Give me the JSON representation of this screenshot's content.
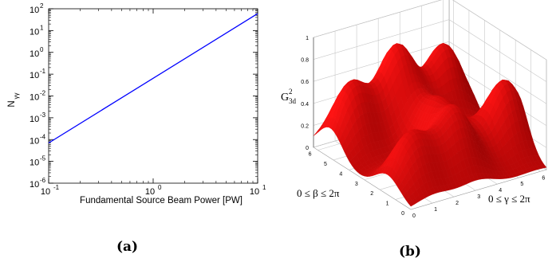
{
  "chart_data": [
    {
      "panel": "(a)",
      "type": "line",
      "xlabel": "Fundamental Source Beam Power [PW]",
      "ylabel": "N",
      "ylabel_subscript": "γγ",
      "xscale": "log",
      "yscale": "log",
      "xlim": [
        0.1,
        10
      ],
      "ylim": [
        1e-06,
        100
      ],
      "grid": false,
      "x_ticks": [
        {
          "base": "10",
          "exp": "-1"
        },
        {
          "base": "10",
          "exp": "0"
        },
        {
          "base": "10",
          "exp": "1"
        }
      ],
      "y_ticks": [
        {
          "base": "10",
          "exp": "-6"
        },
        {
          "base": "10",
          "exp": "-5"
        },
        {
          "base": "10",
          "exp": "-4"
        },
        {
          "base": "10",
          "exp": "-3"
        },
        {
          "base": "10",
          "exp": "-2"
        },
        {
          "base": "10",
          "exp": "-1"
        },
        {
          "base": "10",
          "exp": "0"
        },
        {
          "base": "10",
          "exp": "1"
        },
        {
          "base": "10",
          "exp": "2"
        }
      ],
      "series": [
        {
          "color": "#0000ff",
          "x": [
            0.1,
            10
          ],
          "y": [
            7e-05,
            60
          ]
        }
      ]
    },
    {
      "panel": "(b)",
      "type": "surface",
      "zlabel": "G",
      "zlabel_sup": "2",
      "zlabel_sub": "3d",
      "xlabel": "0 ≤ β ≤ 2π",
      "ylabel": "0 ≤ γ ≤ 2π",
      "zlim": [
        0,
        1
      ],
      "z_ticks": [
        "0",
        "0.2",
        "0.4",
        "0.6",
        "0.8",
        "1"
      ],
      "beta_ticks": [
        "0",
        "1",
        "2",
        "3",
        "4",
        "5",
        "6"
      ],
      "gamma_ticks": [
        "0",
        "1",
        "2",
        "3",
        "4",
        "5",
        "6"
      ],
      "surface_color": "#cc0000",
      "peaks": [
        {
          "beta": 5.2,
          "gamma": 1.0,
          "height": 0.62
        },
        {
          "beta": 5.2,
          "gamma": 3.1,
          "height": 0.82
        },
        {
          "beta": 5.2,
          "gamma": 5.3,
          "height": 0.72
        },
        {
          "beta": 2.0,
          "gamma": 5.8,
          "height": 0.66
        },
        {
          "beta": 1.5,
          "gamma": 3.1,
          "height": 0.56
        },
        {
          "beta": 1.5,
          "gamma": 1.1,
          "height": 0.49
        },
        {
          "beta": 3.2,
          "gamma": 3.6,
          "height": 0.46
        }
      ],
      "grid": true
    }
  ],
  "captions": {
    "a": "(a)",
    "b": "(b)"
  }
}
